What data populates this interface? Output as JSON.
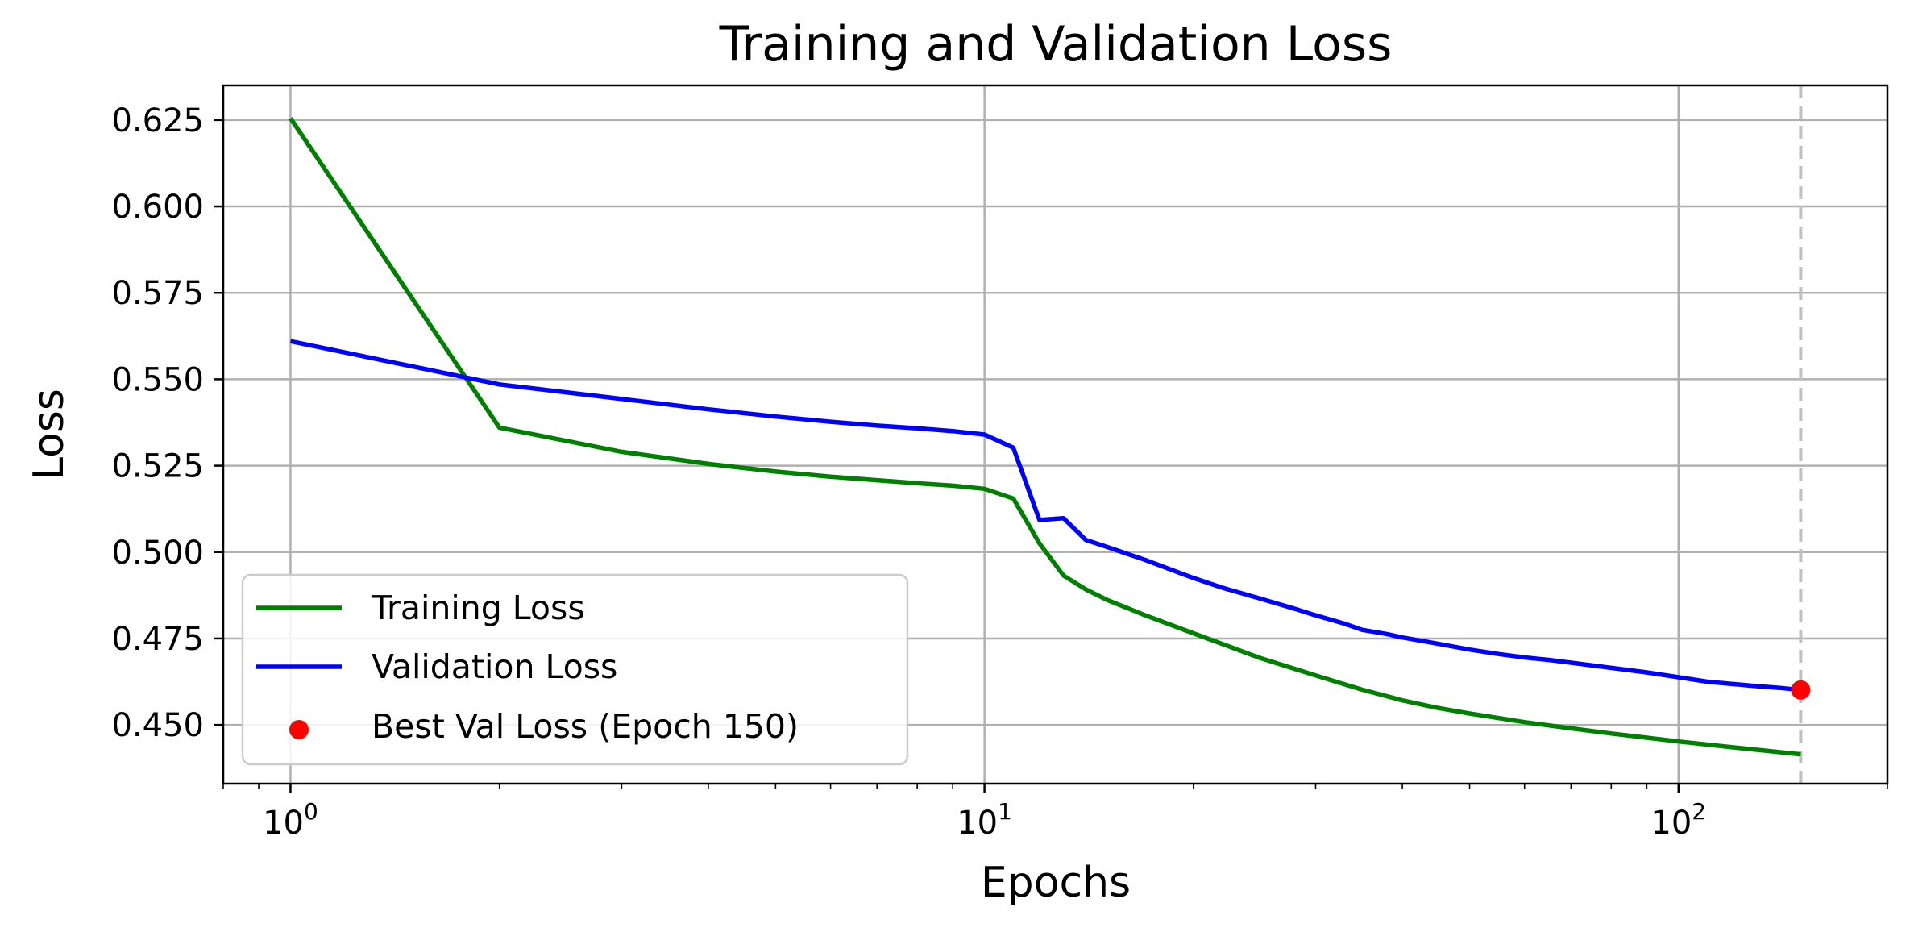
{
  "chart_data": {
    "type": "line",
    "title": "Training and Validation Loss",
    "xlabel": "Epochs",
    "ylabel": "Loss",
    "xscale": "log",
    "xlim": [
      0.8,
      200
    ],
    "ylim": [
      0.433,
      0.635
    ],
    "grid": true,
    "legend_position": "lower-left",
    "x_ticks": [
      {
        "value": 1,
        "base": "10",
        "exp": "0"
      },
      {
        "value": 10,
        "base": "10",
        "exp": "1"
      },
      {
        "value": 100,
        "base": "10",
        "exp": "2"
      }
    ],
    "y_ticks": [
      {
        "value": 0.45,
        "label": "0.450"
      },
      {
        "value": 0.475,
        "label": "0.475"
      },
      {
        "value": 0.5,
        "label": "0.500"
      },
      {
        "value": 0.525,
        "label": "0.525"
      },
      {
        "value": 0.55,
        "label": "0.550"
      },
      {
        "value": 0.575,
        "label": "0.575"
      },
      {
        "value": 0.6,
        "label": "0.600"
      },
      {
        "value": 0.625,
        "label": "0.625"
      }
    ],
    "series": [
      {
        "name": "Training Loss",
        "color": "#008000",
        "x": [
          1,
          2,
          3,
          4,
          5,
          6,
          7,
          8,
          9,
          10,
          11,
          12,
          13,
          14,
          15,
          17,
          20,
          25,
          30,
          35,
          40,
          45,
          50,
          60,
          70,
          80,
          90,
          100,
          120,
          150
        ],
        "y": [
          0.6255,
          0.536,
          0.529,
          0.5255,
          0.5233,
          0.5218,
          0.5208,
          0.5199,
          0.5192,
          0.5183,
          0.5155,
          0.5025,
          0.4932,
          0.4892,
          0.4862,
          0.4818,
          0.4765,
          0.4693,
          0.4643,
          0.4602,
          0.4571,
          0.4549,
          0.4533,
          0.4508,
          0.449,
          0.4475,
          0.4463,
          0.4452,
          0.4435,
          0.4415
        ]
      },
      {
        "name": "Validation Loss",
        "color": "#0000ff",
        "x": [
          1,
          2,
          3,
          4,
          5,
          6,
          7,
          8,
          9,
          10,
          11,
          12,
          13,
          14,
          15,
          17,
          20,
          22,
          25,
          28,
          30,
          33,
          35,
          38,
          40,
          45,
          50,
          55,
          60,
          65,
          70,
          80,
          90,
          100,
          110,
          120,
          130,
          140,
          150
        ],
        "y": [
          0.561,
          0.5485,
          0.5443,
          0.5413,
          0.5392,
          0.5377,
          0.5366,
          0.5358,
          0.535,
          0.534,
          0.5302,
          0.5093,
          0.5098,
          0.5035,
          0.5015,
          0.4978,
          0.4925,
          0.4897,
          0.4865,
          0.4836,
          0.4817,
          0.4793,
          0.4775,
          0.4763,
          0.4753,
          0.4735,
          0.4718,
          0.4705,
          0.4695,
          0.4688,
          0.468,
          0.4665,
          0.4652,
          0.4638,
          0.4625,
          0.4618,
          0.4612,
          0.4607,
          0.4601
        ]
      }
    ],
    "best_point": {
      "name": "Best Val Loss (Epoch 150)",
      "color": "#ff0000",
      "x": 150,
      "y": 0.4601
    },
    "vline": {
      "x": 150,
      "color": "#c0c0c0",
      "style": "dashed"
    }
  }
}
